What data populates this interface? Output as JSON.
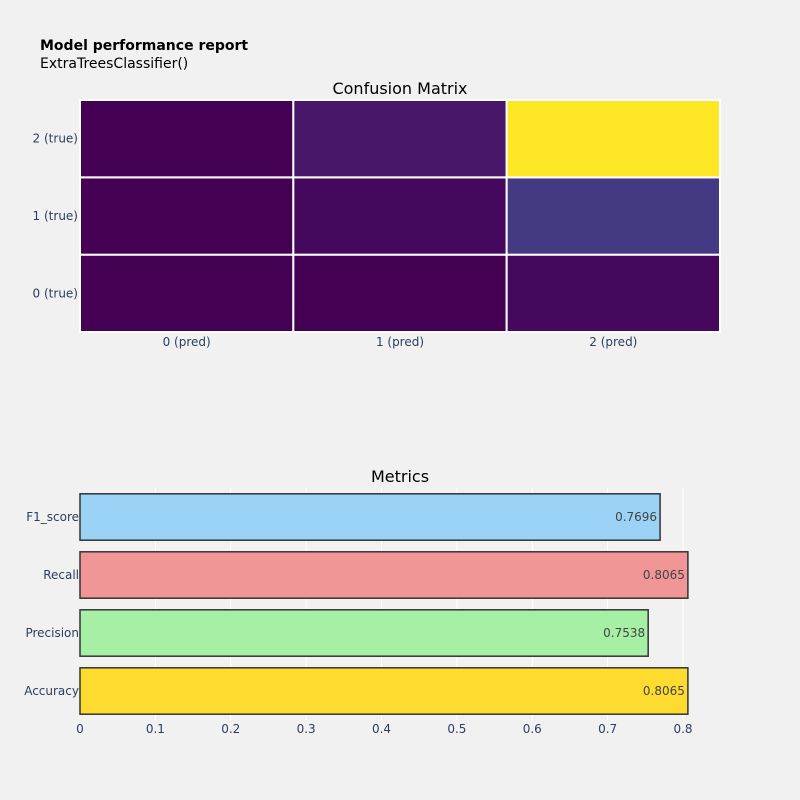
{
  "report": {
    "title": "Model performance report",
    "subtitle": "ExtraTreesClassifier()"
  },
  "chart_data": [
    {
      "type": "heatmap",
      "title": "Confusion Matrix",
      "x_labels": [
        "0 (pred)",
        "1 (pred)",
        "2 (pred)"
      ],
      "y_labels": [
        "0 (true)",
        "1 (true)",
        "2 (true)"
      ],
      "colorscale": "viridis",
      "colors": [
        [
          "#440154",
          "#440154",
          "#46085c"
        ],
        [
          "#440154",
          "#46085c",
          "#443a83"
        ],
        [
          "#440154",
          "#481769",
          "#fde725"
        ]
      ]
    },
    {
      "type": "bar",
      "orientation": "horizontal",
      "title": "Metrics",
      "categories": [
        "Accuracy",
        "Precision",
        "Recall",
        "F1_score"
      ],
      "values": [
        0.8065,
        0.7538,
        0.8065,
        0.7696
      ],
      "value_labels": [
        "0.8065",
        "0.7538",
        "0.8065",
        "0.7696"
      ],
      "colors": [
        "#fddc2f",
        "#a5f0a5",
        "#f09696",
        "#9ad3f6"
      ],
      "xlim": [
        0,
        0.8
      ],
      "xticks": [
        0,
        0.1,
        0.2,
        0.3,
        0.4,
        0.5,
        0.6,
        0.7,
        0.8
      ],
      "xtick_labels": [
        "0",
        "0.1",
        "0.2",
        "0.3",
        "0.4",
        "0.5",
        "0.6",
        "0.7",
        "0.8"
      ],
      "grid": true
    }
  ]
}
